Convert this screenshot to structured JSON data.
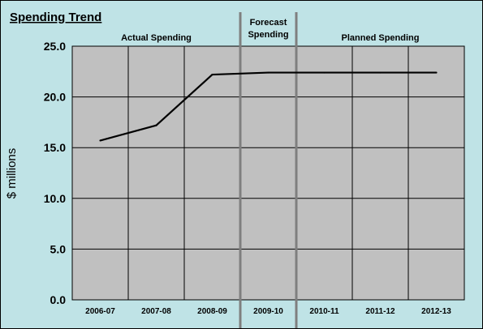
{
  "colors": {
    "background": "#bfe3e6",
    "plot_area": "#c0c0c0",
    "gridline": "#000000",
    "series_line": "#000000",
    "section_divider": "#7f7f7f"
  },
  "chart_data": {
    "type": "line",
    "title": "Spending Trend",
    "xlabel": "",
    "ylabel": "$ millions",
    "categories": [
      "2006-07",
      "2007-08",
      "2008-09",
      "2009-10",
      "2010-11",
      "2011-12",
      "2012-13"
    ],
    "series": [
      {
        "values": [
          15.7,
          17.2,
          22.2,
          22.4,
          22.4,
          22.4,
          22.4
        ]
      }
    ],
    "ylim": [
      0,
      25
    ],
    "yticks": [
      "0.0",
      "5.0",
      "10.0",
      "15.0",
      "20.0",
      "25.0"
    ],
    "grid": true,
    "sections": [
      {
        "label_lines": [
          "Actual Spending"
        ],
        "from": 0,
        "to": 2
      },
      {
        "label_lines": [
          "Forecast",
          "Spending"
        ],
        "from": 3,
        "to": 3
      },
      {
        "label_lines": [
          "Planned Spending"
        ],
        "from": 4,
        "to": 6
      }
    ]
  }
}
